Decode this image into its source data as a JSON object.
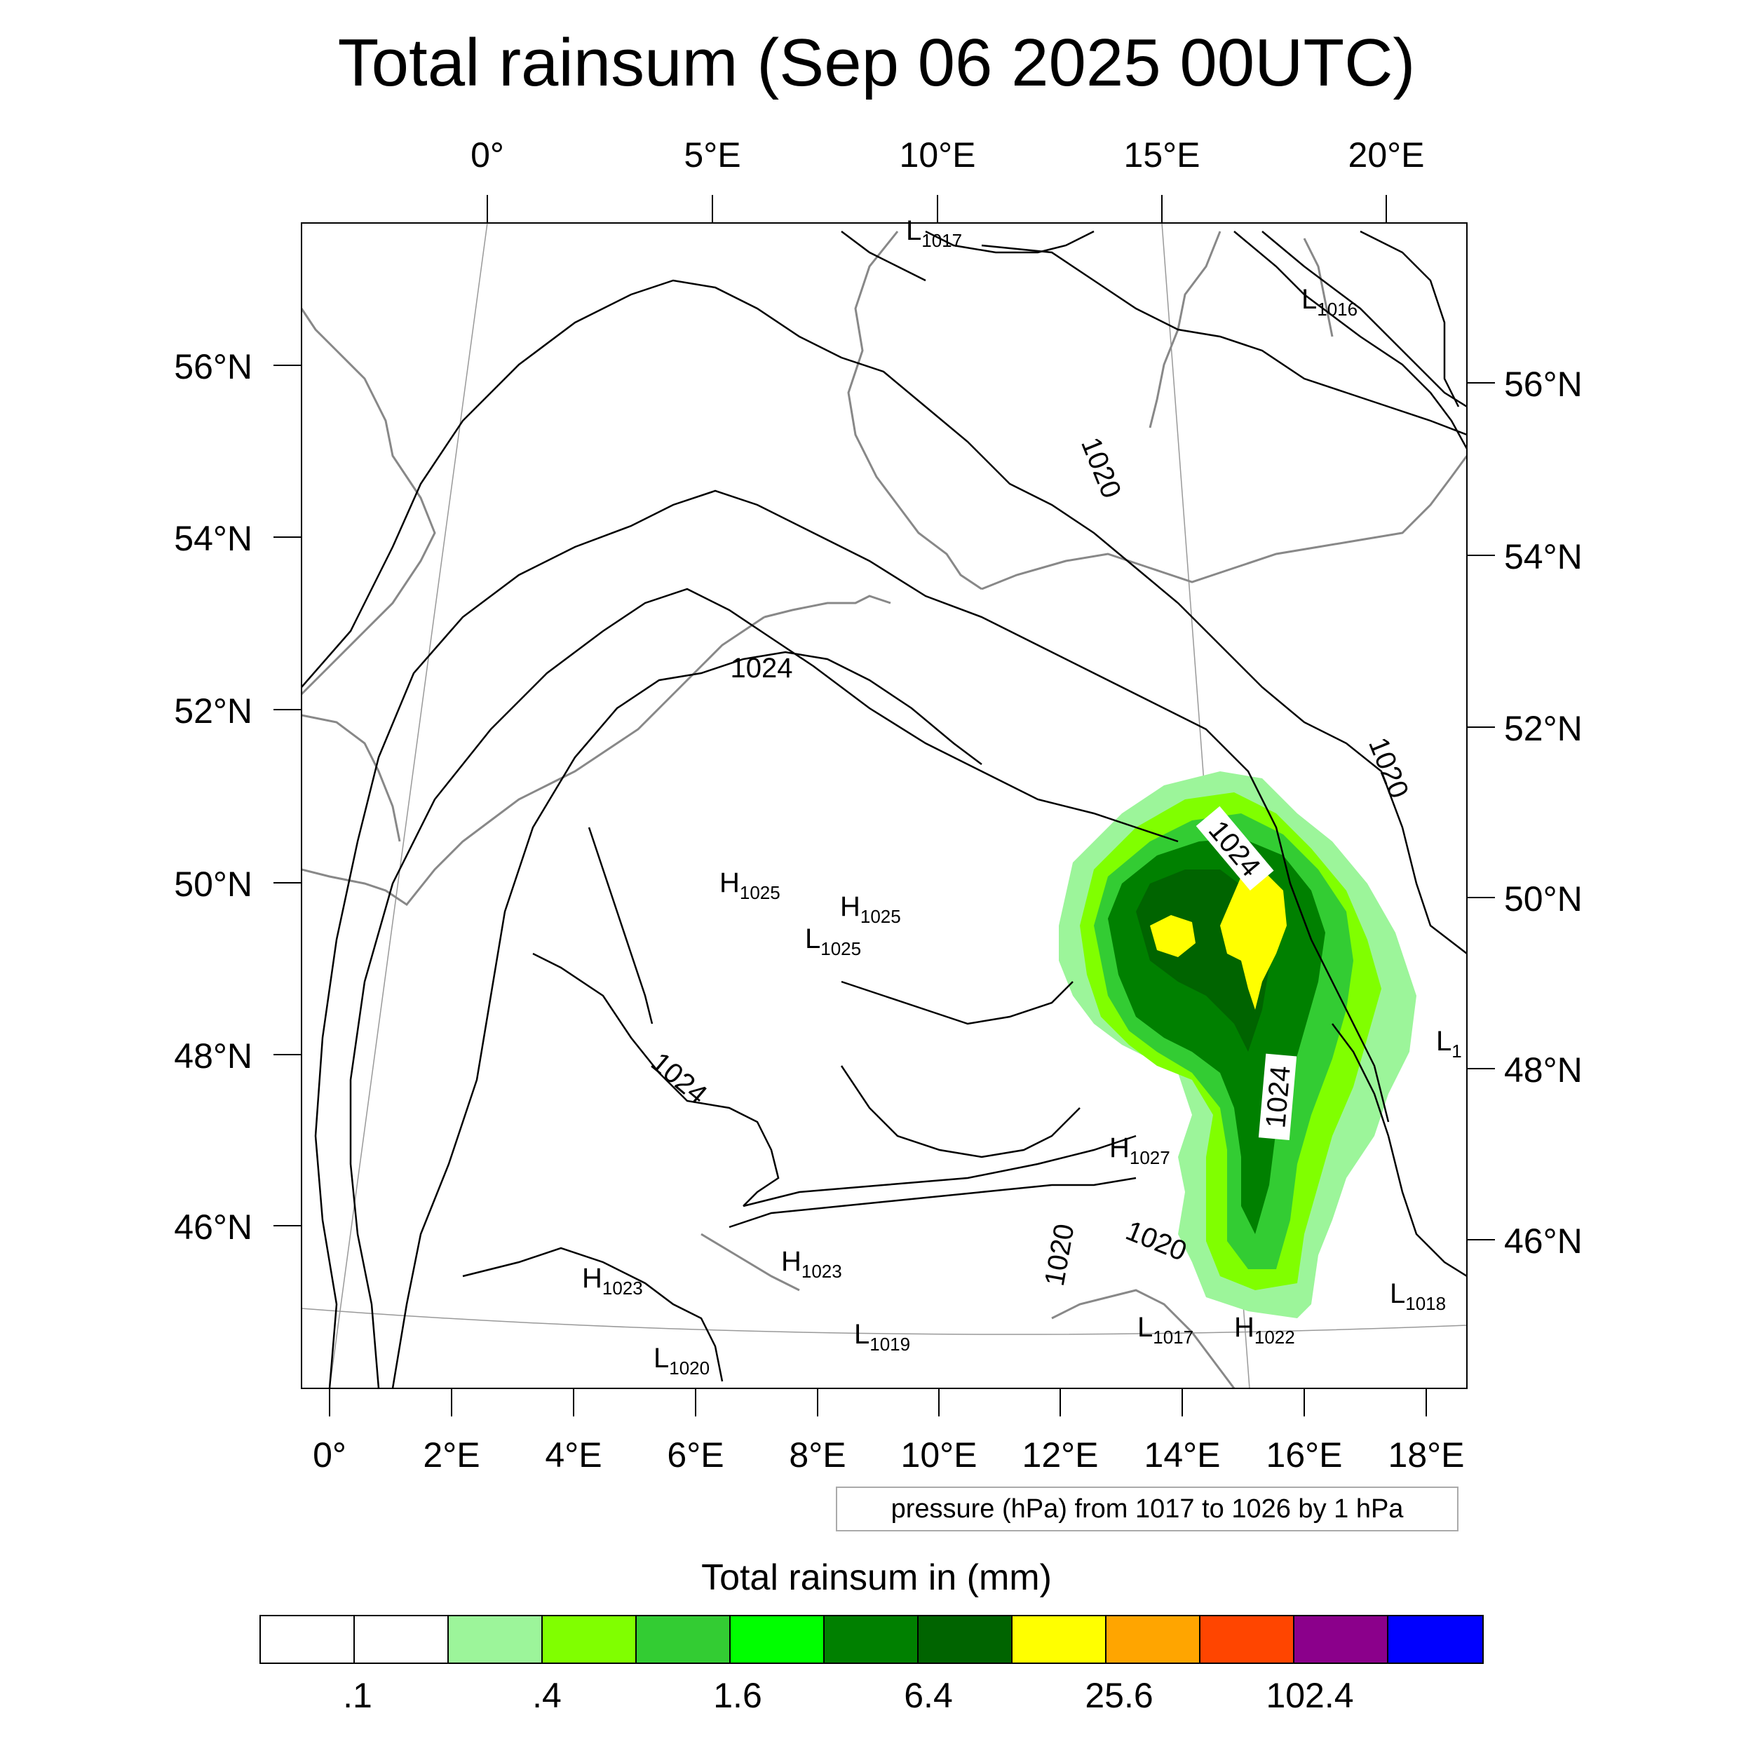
{
  "title": "Total rainsum (Sep 06 2025 00UTC)",
  "top_lon_labels": [
    "0°",
    "5°E",
    "10°E",
    "15°E",
    "20°E"
  ],
  "bottom_lon_labels": [
    "0°",
    "2°E",
    "4°E",
    "6°E",
    "8°E",
    "10°E",
    "12°E",
    "14°E",
    "16°E",
    "18°E"
  ],
  "left_lat_labels": [
    "56°N",
    "54°N",
    "52°N",
    "50°N",
    "48°N",
    "46°N"
  ],
  "right_lat_labels": [
    "56°N",
    "54°N",
    "52°N",
    "50°N",
    "48°N",
    "46°N"
  ],
  "pressure_centers": [
    {
      "letter": "L",
      "value": "1017"
    },
    {
      "letter": "L",
      "value": "1016"
    },
    {
      "letter": "H",
      "value": "1025"
    },
    {
      "letter": "H",
      "value": "1025"
    },
    {
      "letter": "L",
      "value": "1025"
    },
    {
      "letter": "H",
      "value": "1027"
    },
    {
      "letter": "H",
      "value": "1023"
    },
    {
      "letter": "H",
      "value": "1023"
    },
    {
      "letter": "L",
      "value": "1020"
    },
    {
      "letter": "L",
      "value": "1019"
    },
    {
      "letter": "L",
      "value": "1017"
    },
    {
      "letter": "H",
      "value": "1022"
    },
    {
      "letter": "L",
      "value": "1018"
    },
    {
      "letter": "L",
      "value": "1"
    }
  ],
  "isobar_labels": [
    "1020",
    "1024",
    "1020",
    "1024",
    "1024",
    "1024",
    "1020",
    "1020"
  ],
  "pressure_note": "pressure (hPa) from 1017 to 1026 by 1 hPa",
  "legend": {
    "title": "Total rainsum in (mm)",
    "colors": [
      "#ffffff",
      "#ffffff",
      "#9cf59a",
      "#80ff00",
      "#33cc33",
      "#00ff00",
      "#008000",
      "#006400",
      "#ffff00",
      "#ffa500",
      "#ff4500",
      "#8b008b",
      "#0000ff"
    ],
    "labels": [
      ".1",
      ".4",
      "1.6",
      "6.4",
      "25.6",
      "102.4"
    ]
  },
  "colors": {
    "coastline": "#888888",
    "isobar": "#000000",
    "rain_light": "#9cf59a",
    "rain_lime": "#80ff00",
    "rain_mid": "#33cc33",
    "rain_green": "#00ff00",
    "rain_dark": "#008000",
    "rain_darker": "#006400",
    "rain_heavy": "#ffff00"
  }
}
